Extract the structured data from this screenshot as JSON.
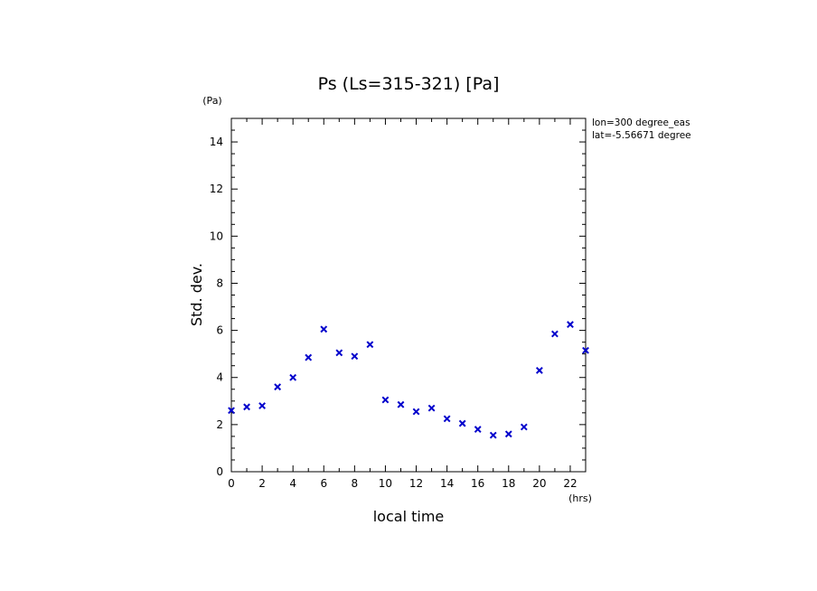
{
  "chart_data": {
    "type": "scatter",
    "title": "Ps (Ls=315-321) [Pa]",
    "xlabel": "local time",
    "ylabel": "Std. dev.",
    "x_unit": "(hrs)",
    "y_unit": "(Pa)",
    "xlim": [
      0,
      23
    ],
    "ylim": [
      0,
      15
    ],
    "x_major_ticks": [
      0,
      2,
      4,
      6,
      8,
      10,
      12,
      14,
      16,
      18,
      20,
      22
    ],
    "y_major_ticks": [
      0,
      2,
      4,
      6,
      8,
      10,
      12,
      14
    ],
    "x_tick_labels": [
      "0",
      "2",
      "4",
      "6",
      "8",
      "10",
      "12",
      "14",
      "16",
      "18",
      "20",
      "22"
    ],
    "y_tick_labels": [
      "0",
      "2",
      "4",
      "6",
      "8",
      "10",
      "12",
      "14"
    ],
    "marker": "x",
    "marker_color": "#0000cc",
    "grid": false,
    "annotations": [
      "lon=300 degree_eas",
      "lat=-5.56671 degree"
    ],
    "series": [
      {
        "x": [
          0,
          1,
          2,
          3,
          4,
          5,
          6,
          7,
          8,
          9,
          10,
          11,
          12,
          13,
          14,
          15,
          16,
          17,
          18,
          19,
          20,
          21,
          22,
          23
        ],
        "values": [
          2.6,
          2.75,
          2.8,
          3.6,
          4.0,
          4.85,
          6.05,
          5.05,
          4.9,
          5.4,
          3.05,
          2.85,
          2.55,
          2.7,
          2.25,
          2.05,
          1.8,
          1.55,
          1.6,
          1.9,
          4.3,
          5.85,
          6.25,
          5.15
        ]
      }
    ]
  }
}
